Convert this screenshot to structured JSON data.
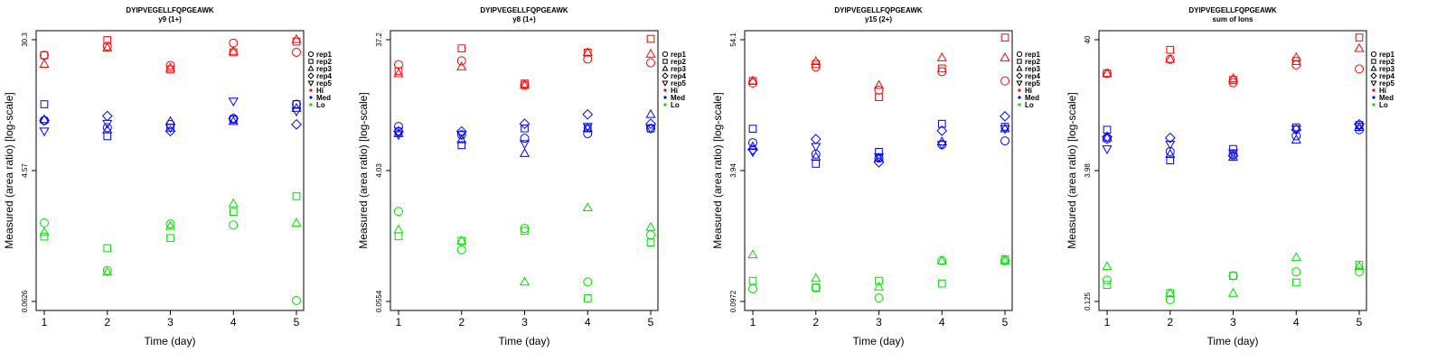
{
  "colors": {
    "Hi": "#ff0000",
    "Med": "#0000ff",
    "Lo": "#00dd00"
  },
  "legend_items": [
    {
      "label": "rep1",
      "marker": "circle"
    },
    {
      "label": "rep2",
      "marker": "square"
    },
    {
      "label": "rep3",
      "marker": "triangle-up"
    },
    {
      "label": "rep4",
      "marker": "diamond"
    },
    {
      "label": "rep5",
      "marker": "triangle-down"
    },
    {
      "label": "Hi",
      "marker": "dot",
      "color": "#ff0000"
    },
    {
      "label": "Med",
      "marker": "dot",
      "color": "#0000ff"
    },
    {
      "label": "Lo",
      "marker": "dot",
      "color": "#00dd00"
    }
  ],
  "chart_data": [
    {
      "type": "scatter",
      "title": "DYIPVEGELLFQPGEAWK",
      "subtitle": "y9 (1+)",
      "xlabel": "Time (day)",
      "ylabel": "Measured (area ratio) [log-scale]",
      "yscale": "log",
      "ylim": [
        0.0626,
        30.3
      ],
      "yticks": [
        "0.0626",
        "4.57",
        "30.3"
      ],
      "x": [
        1,
        2,
        3,
        4,
        5
      ],
      "series": [
        {
          "name": "rep1",
          "group": "Hi",
          "values": [
            21,
            26,
            16.5,
            28,
            22.5
          ]
        },
        {
          "name": "rep2",
          "group": "Hi",
          "values": [
            21,
            30,
            15,
            22.5,
            29
          ]
        },
        {
          "name": "rep3",
          "group": "Hi",
          "values": [
            17,
            25,
            15.5,
            23,
            30.5
          ]
        },
        {
          "name": "rep1",
          "group": "Med",
          "values": [
            4.5,
            3.8,
            4.1,
            4.7,
            6.6
          ]
        },
        {
          "name": "rep2",
          "group": "Med",
          "values": [
            6.6,
            3.1,
            3.8,
            4.6,
            6.6
          ]
        },
        {
          "name": "rep3",
          "group": "Med",
          "values": [
            4.6,
            3.6,
            4.4,
            4.4,
            6.0
          ]
        },
        {
          "name": "rep4",
          "group": "Med",
          "values": [
            4.5,
            5.0,
            3.5,
            4.7,
            4.1
          ]
        },
        {
          "name": "rep5",
          "group": "Med",
          "values": [
            3.5,
            4.2,
            3.8,
            7.1,
            5.6
          ]
        },
        {
          "name": "rep1",
          "group": "Lo",
          "values": [
            0.4,
            0.13,
            0.39,
            0.38,
            0.064
          ]
        },
        {
          "name": "rep2",
          "group": "Lo",
          "values": [
            0.29,
            0.22,
            0.28,
            0.52,
            0.75
          ]
        },
        {
          "name": "rep3",
          "group": "Lo",
          "values": [
            0.32,
            0.125,
            0.37,
            0.63,
            0.4
          ]
        }
      ]
    },
    {
      "type": "scatter",
      "title": "DYIPVEGELLFQPGEAWK",
      "subtitle": "y8 (1+)",
      "xlabel": "Time (day)",
      "ylabel": "Measured (area ratio) [log-scale]",
      "yscale": "log",
      "ylim": [
        0.0554,
        37.2
      ],
      "yticks": [
        "0.0554",
        "4.03",
        "37.2"
      ],
      "x": [
        1,
        2,
        3,
        4,
        5
      ],
      "series": [
        {
          "name": "rep1",
          "group": "Hi",
          "values": [
            20,
            22,
            12,
            23,
            21
          ]
        },
        {
          "name": "rep2",
          "group": "Hi",
          "values": [
            17,
            30,
            12.5,
            27,
            38
          ]
        },
        {
          "name": "rep3",
          "group": "Hi",
          "values": [
            16,
            19,
            12,
            27,
            26
          ]
        },
        {
          "name": "rep1",
          "group": "Med",
          "values": [
            4.3,
            3.5,
            3.2,
            3.6,
            4.1
          ]
        },
        {
          "name": "rep2",
          "group": "Med",
          "values": [
            3.8,
            2.7,
            4.1,
            4.1,
            4.1
          ]
        },
        {
          "name": "rep3",
          "group": "Med",
          "values": [
            3.6,
            3.1,
            2.2,
            4.1,
            5.8
          ]
        },
        {
          "name": "rep4",
          "group": "Med",
          "values": [
            3.8,
            3.8,
            4.6,
            5.8,
            4.6
          ]
        },
        {
          "name": "rep5",
          "group": "Med",
          "values": [
            3.5,
            3.5,
            2.8,
            4.3,
            4.1
          ]
        },
        {
          "name": "rep1",
          "group": "Lo",
          "values": [
            0.52,
            0.2,
            0.34,
            0.09,
            0.29
          ]
        },
        {
          "name": "rep2",
          "group": "Lo",
          "values": [
            0.28,
            0.25,
            0.32,
            0.06,
            0.24
          ]
        },
        {
          "name": "rep3",
          "group": "Lo",
          "values": [
            0.33,
            0.25,
            0.09,
            0.57,
            0.35
          ]
        }
      ]
    },
    {
      "type": "scatter",
      "title": "DYIPVEGELLFQPGEAWK",
      "subtitle": "y15 (2+)",
      "xlabel": "Time (day)",
      "ylabel": "Measured (area ratio) [log-scale]",
      "yscale": "log",
      "ylim": [
        0.0972,
        54.1
      ],
      "yticks": [
        "0.0972",
        "3.94",
        "54.1"
      ],
      "x": [
        1,
        2,
        3,
        4,
        5
      ],
      "series": [
        {
          "name": "rep1",
          "group": "Hi",
          "values": [
            19,
            28,
            16,
            25,
            20
          ]
        },
        {
          "name": "rep2",
          "group": "Hi",
          "values": [
            20,
            30,
            13.5,
            27,
            57
          ]
        },
        {
          "name": "rep3",
          "group": "Hi",
          "values": [
            20,
            32,
            18,
            35,
            35
          ]
        },
        {
          "name": "rep1",
          "group": "Med",
          "values": [
            4.5,
            3.4,
            3.1,
            4.3,
            4.7
          ]
        },
        {
          "name": "rep2",
          "group": "Med",
          "values": [
            6.3,
            2.7,
            3.6,
            7.1,
            6.6
          ]
        },
        {
          "name": "rep3",
          "group": "Med",
          "values": [
            4.1,
            3.2,
            3.1,
            4.6,
            6.3
          ]
        },
        {
          "name": "rep4",
          "group": "Med",
          "values": [
            3.8,
            4.9,
            2.8,
            6.0,
            8.5
          ]
        },
        {
          "name": "rep5",
          "group": "Med",
          "values": [
            3.6,
            4.1,
            3.2,
            4.3,
            6.3
          ]
        },
        {
          "name": "rep1",
          "group": "Lo",
          "values": [
            0.132,
            0.135,
            0.106,
            0.26,
            0.26
          ]
        },
        {
          "name": "rep2",
          "group": "Lo",
          "values": [
            0.16,
            0.136,
            0.16,
            0.15,
            0.27
          ]
        },
        {
          "name": "rep3",
          "group": "Lo",
          "values": [
            0.3,
            0.17,
            0.138,
            0.26,
            0.26
          ]
        }
      ]
    },
    {
      "type": "scatter",
      "title": "DYIPVEGELLFQPGEAWK",
      "subtitle": "sum of Ions",
      "xlabel": "Time (day)",
      "ylabel": "Measured (area ratio) [log-scale]",
      "yscale": "log",
      "ylim": [
        0.125,
        40
      ],
      "yticks": [
        "0.125",
        "3.98",
        "40"
      ],
      "x": [
        1,
        2,
        3,
        4,
        5
      ],
      "series": [
        {
          "name": "rep1",
          "group": "Hi",
          "values": [
            19,
            26,
            15.5,
            23,
            21
          ]
        },
        {
          "name": "rep2",
          "group": "Hi",
          "values": [
            19,
            32,
            16.5,
            25,
            42
          ]
        },
        {
          "name": "rep3",
          "group": "Hi",
          "values": [
            19,
            26,
            17,
            27,
            33
          ]
        },
        {
          "name": "rep1",
          "group": "Med",
          "values": [
            4.5,
            3.4,
            3.2,
            4.8,
            5.5
          ]
        },
        {
          "name": "rep2",
          "group": "Med",
          "values": [
            5.5,
            2.8,
            3.6,
            5.8,
            6.1
          ]
        },
        {
          "name": "rep3",
          "group": "Med",
          "values": [
            4.6,
            3.2,
            3.0,
            4.4,
            5.8
          ]
        },
        {
          "name": "rep4",
          "group": "Med",
          "values": [
            4.7,
            4.6,
            3.1,
            5.5,
            6.2
          ]
        },
        {
          "name": "rep5",
          "group": "Med",
          "values": [
            3.6,
            4.0,
            3.3,
            5.6,
            5.9
          ]
        },
        {
          "name": "rep1",
          "group": "Lo",
          "values": [
            0.2,
            0.13,
            0.22,
            0.24,
            0.24
          ]
        },
        {
          "name": "rep2",
          "group": "Lo",
          "values": [
            0.18,
            0.15,
            0.22,
            0.19,
            0.28
          ]
        },
        {
          "name": "rep3",
          "group": "Lo",
          "values": [
            0.27,
            0.15,
            0.15,
            0.33,
            0.27
          ]
        }
      ]
    }
  ]
}
